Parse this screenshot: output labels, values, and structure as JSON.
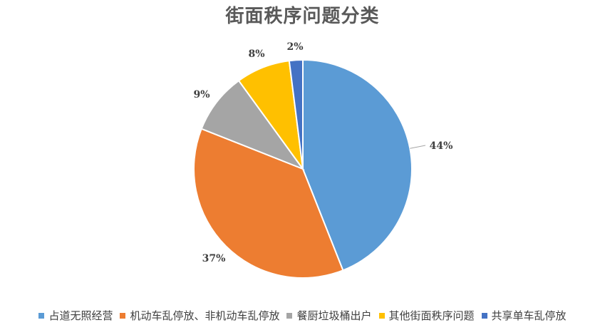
{
  "chart_data": {
    "type": "pie",
    "title": "街面秩序问题分类",
    "categories": [
      "占道无照经营",
      "机动车乱停放、非机动车乱停放",
      "餐厨垃圾桶出户",
      "其他街面秩序问题",
      "共享单车乱停放"
    ],
    "values": [
      44,
      37,
      9,
      8,
      2
    ],
    "labels": [
      "44%",
      "37%",
      "9%",
      "8%",
      "2%"
    ],
    "colors": [
      "#5B9BD5",
      "#ED7D31",
      "#A5A5A5",
      "#FFC000",
      "#4472C4"
    ],
    "legend_position": "bottom"
  }
}
